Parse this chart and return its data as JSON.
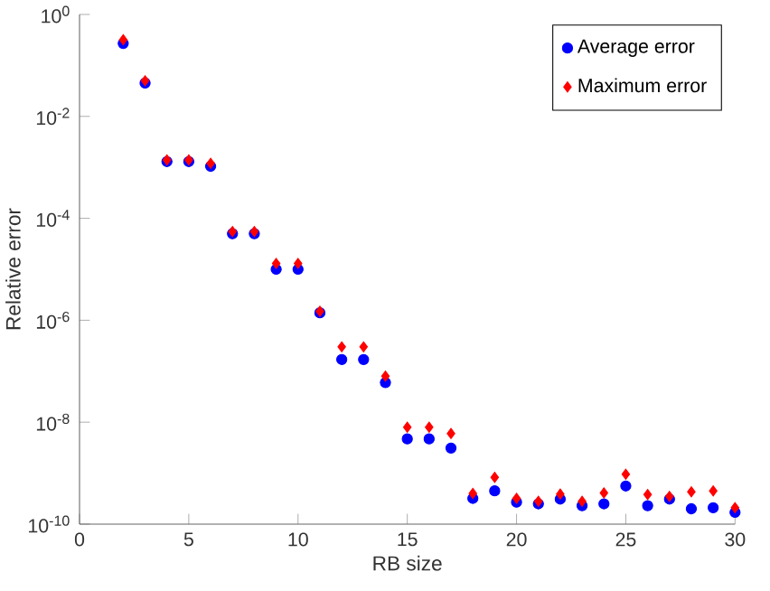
{
  "chart_data": {
    "type": "scatter",
    "xlabel": "RB size",
    "ylabel": "Relative error",
    "log": "y",
    "legend": "top right",
    "x": [
      2,
      3,
      4,
      5,
      6,
      7,
      8,
      9,
      10,
      11,
      12,
      13,
      14,
      15,
      16,
      17,
      18,
      19,
      20,
      21,
      22,
      23,
      24,
      25,
      26,
      27,
      28,
      29,
      30
    ],
    "series": [
      {
        "name": "Average error",
        "color": "#0000ff",
        "marker": "circle",
        "values": [
          0.27,
          0.045,
          0.0013,
          0.0013,
          0.00105,
          5e-05,
          5e-05,
          1e-05,
          1e-05,
          1.4e-06,
          1.7e-07,
          1.7e-07,
          6e-08,
          4.7e-09,
          4.7e-09,
          3.1e-09,
          3.2e-10,
          4.5e-10,
          2.7e-10,
          2.5e-10,
          3.1e-10,
          2.3e-10,
          2.5e-10,
          5.6e-10,
          2.3e-10,
          3.1e-10,
          2e-10,
          2.1e-10,
          1.7e-10
        ]
      },
      {
        "name": "Maximum error",
        "color": "#ff0000",
        "marker": "diamond",
        "values": [
          0.32,
          0.05,
          0.0014,
          0.0014,
          0.0012,
          5.5e-05,
          5.5e-05,
          1.3e-05,
          1.3e-05,
          1.5e-06,
          3e-07,
          3e-07,
          8e-08,
          8e-09,
          8e-09,
          6e-09,
          4e-10,
          8.3e-10,
          3.2e-10,
          2.8e-10,
          3.9e-10,
          2.8e-10,
          4.1e-10,
          9.5e-10,
          3.8e-10,
          3.5e-10,
          4.3e-10,
          4.5e-10,
          2.1e-10
        ]
      }
    ],
    "xlim": [
      0,
      30
    ],
    "xticks": [
      0,
      5,
      10,
      15,
      20,
      25,
      30
    ],
    "ylim": [
      1e-10,
      1
    ],
    "yticks": [
      {
        "value": 1e-10,
        "label": "10$^{-10}$"
      },
      {
        "value": 1e-08,
        "label": "10$^{-8}$"
      },
      {
        "value": 1e-06,
        "label": "10$^{-6}$"
      },
      {
        "value": 0.0001,
        "label": "10$^{-4}$"
      },
      {
        "value": 0.01,
        "label": "10$^{-2}$"
      },
      {
        "value": 1,
        "label": "10$^{0}$"
      }
    ]
  }
}
